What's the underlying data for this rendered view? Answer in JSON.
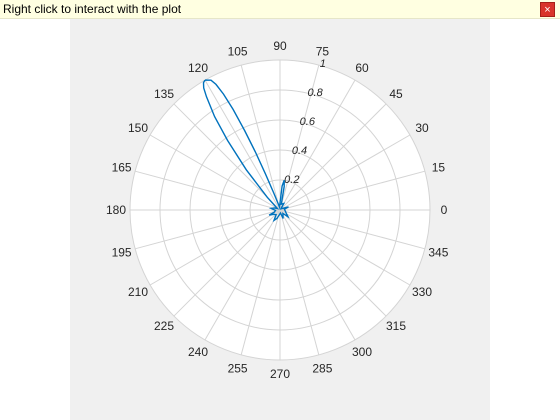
{
  "banner": {
    "text": "Right click to interact with the plot",
    "close_symbol": "×",
    "close_icon": "close-icon"
  },
  "chart_data": {
    "type": "polar-line",
    "angle_unit": "degrees",
    "theta_ticks": [
      0,
      15,
      30,
      45,
      60,
      75,
      90,
      105,
      120,
      135,
      150,
      165,
      180,
      195,
      210,
      225,
      240,
      255,
      270,
      285,
      300,
      315,
      330,
      345
    ],
    "theta_labels": [
      "0",
      "15",
      "30",
      "45",
      "60",
      "75",
      "90",
      "105",
      "120",
      "135",
      "150",
      "165",
      "180",
      "195",
      "210",
      "225",
      "240",
      "255",
      "270",
      "285",
      "300",
      "315",
      "330",
      "345"
    ],
    "r_ticks": [
      0.2,
      0.4,
      0.6,
      0.8,
      1
    ],
    "r_labels": [
      "0.2",
      "0.4",
      "0.6",
      "0.8",
      "1"
    ],
    "rlim": [
      0,
      1
    ],
    "r_label_angle": 75,
    "series": [
      {
        "color": "#0072bd",
        "main_lobe_direction": 120,
        "main_lobe_peak": 1.0,
        "points": [
          [
            120,
            1.0
          ],
          [
            118,
            0.98
          ],
          [
            117,
            0.94
          ],
          [
            116,
            0.86
          ],
          [
            115,
            0.74
          ],
          [
            114,
            0.58
          ],
          [
            113,
            0.42
          ],
          [
            112,
            0.26
          ],
          [
            110,
            0.12
          ],
          [
            100,
            0.02
          ],
          [
            85,
            0.16
          ],
          [
            82,
            0.2
          ],
          [
            80,
            0.16
          ],
          [
            77,
            0.04
          ],
          [
            60,
            0.05
          ],
          [
            55,
            0.01
          ],
          [
            20,
            0.06
          ],
          [
            10,
            0.03
          ],
          [
            330,
            0.05
          ],
          [
            320,
            0.07
          ],
          [
            310,
            0.03
          ],
          [
            290,
            0.06
          ],
          [
            280,
            0.02
          ],
          [
            250,
            0.06
          ],
          [
            240,
            0.08
          ],
          [
            230,
            0.04
          ],
          [
            215,
            0.05
          ],
          [
            205,
            0.08
          ],
          [
            200,
            0.04
          ],
          [
            185,
            0.03
          ],
          [
            170,
            0.06
          ],
          [
            160,
            0.04
          ],
          [
            150,
            0.02
          ],
          [
            135,
            0.12
          ],
          [
            130,
            0.35
          ],
          [
            127,
            0.58
          ],
          [
            125,
            0.76
          ],
          [
            123,
            0.9
          ],
          [
            122,
            0.96
          ],
          [
            121,
            0.99
          ],
          [
            120,
            1.0
          ]
        ]
      }
    ]
  }
}
